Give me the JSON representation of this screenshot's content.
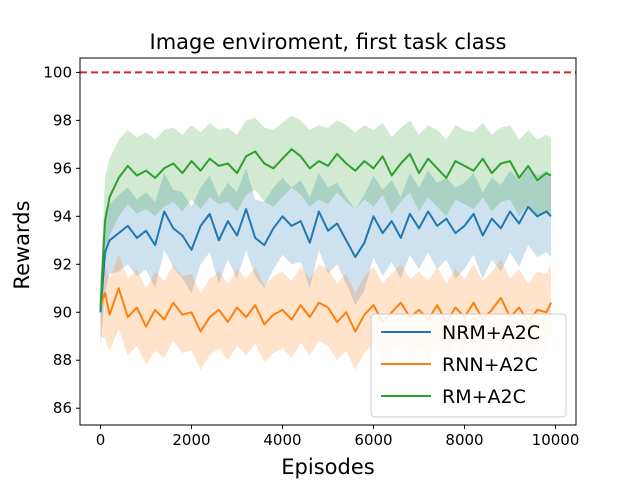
{
  "chart_data": {
    "type": "line",
    "title": "Image enviroment, first task class",
    "xlabel": "Episodes",
    "ylabel": "Rewards",
    "xlim": [
      -450,
      10450
    ],
    "ylim": [
      85.3,
      100.6
    ],
    "xticks": [
      0,
      2000,
      4000,
      6000,
      8000,
      10000
    ],
    "yticks": [
      86,
      88,
      90,
      92,
      94,
      96,
      98,
      100
    ],
    "reference_line": {
      "y": 100,
      "color": "#d62728",
      "style": "dashed"
    },
    "legend_position": "lower right",
    "series": [
      {
        "name": "NRM+A2C",
        "color": "#1f77b4",
        "x": [
          0,
          100,
          200,
          400,
          600,
          800,
          1000,
          1200,
          1400,
          1600,
          1800,
          2000,
          2200,
          2400,
          2600,
          2800,
          3000,
          3200,
          3400,
          3600,
          3800,
          4000,
          4200,
          4400,
          4600,
          4800,
          5000,
          5200,
          5400,
          5600,
          5800,
          6000,
          6200,
          6400,
          6600,
          6800,
          7000,
          7200,
          7400,
          7600,
          7800,
          8000,
          8200,
          8400,
          8600,
          8800,
          9000,
          9200,
          9400,
          9600,
          9800,
          9900
        ],
        "values": [
          90.0,
          92.5,
          93.0,
          93.3,
          93.6,
          93.1,
          93.4,
          92.8,
          94.2,
          93.5,
          93.2,
          92.6,
          93.6,
          94.1,
          93.0,
          93.8,
          93.2,
          94.3,
          93.1,
          92.8,
          93.5,
          94.0,
          93.6,
          93.8,
          92.9,
          94.2,
          93.4,
          93.7,
          93.0,
          92.3,
          92.9,
          94.0,
          93.3,
          93.8,
          93.1,
          94.1,
          93.5,
          94.2,
          93.6,
          93.9,
          93.3,
          93.6,
          94.1,
          93.2,
          93.9,
          93.5,
          94.2,
          93.7,
          94.4,
          94.0,
          94.2,
          94.0
        ],
        "band_low": [
          88.5,
          90.8,
          91.6,
          91.7,
          92.0,
          91.5,
          91.8,
          91.0,
          92.6,
          91.9,
          91.4,
          90.8,
          92.0,
          92.5,
          91.2,
          92.2,
          91.4,
          92.6,
          91.5,
          91.0,
          91.8,
          92.4,
          92.0,
          92.1,
          91.0,
          92.6,
          91.6,
          92.0,
          91.2,
          90.3,
          90.9,
          92.3,
          91.5,
          92.1,
          91.4,
          92.4,
          91.8,
          92.5,
          91.8,
          92.2,
          91.4,
          91.8,
          92.4,
          91.4,
          92.2,
          91.7,
          92.5,
          91.9,
          92.8,
          92.3,
          92.5,
          92.3
        ],
        "band_high": [
          91.5,
          94.2,
          94.5,
          94.9,
          95.2,
          94.7,
          95.0,
          94.6,
          95.8,
          95.1,
          95.0,
          94.4,
          95.2,
          95.7,
          94.8,
          95.4,
          95.0,
          96.0,
          94.7,
          94.6,
          95.2,
          95.6,
          95.2,
          95.5,
          94.8,
          95.8,
          95.2,
          95.4,
          94.8,
          94.3,
          94.9,
          95.7,
          95.1,
          95.5,
          94.8,
          95.8,
          95.2,
          95.9,
          95.4,
          95.6,
          95.2,
          95.4,
          95.8,
          95.0,
          95.6,
          95.3,
          95.9,
          95.5,
          96.0,
          95.7,
          95.9,
          95.7
        ]
      },
      {
        "name": "RNN+A2C",
        "color": "#ff7f0e",
        "x": [
          0,
          100,
          200,
          400,
          600,
          800,
          1000,
          1200,
          1400,
          1600,
          1800,
          2000,
          2200,
          2400,
          2600,
          2800,
          3000,
          3200,
          3400,
          3600,
          3800,
          4000,
          4200,
          4400,
          4600,
          4800,
          5000,
          5200,
          5400,
          5600,
          5800,
          6000,
          6200,
          6400,
          6600,
          6800,
          7000,
          7200,
          7400,
          7600,
          7800,
          8000,
          8200,
          8400,
          8600,
          8800,
          9000,
          9200,
          9400,
          9600,
          9800,
          9900
        ],
        "values": [
          90.3,
          90.8,
          89.9,
          91.0,
          89.8,
          90.2,
          89.4,
          90.1,
          89.7,
          90.4,
          89.9,
          90.0,
          89.2,
          89.8,
          90.1,
          89.6,
          90.2,
          89.8,
          90.3,
          89.5,
          89.9,
          90.1,
          89.7,
          90.3,
          89.8,
          90.4,
          90.2,
          89.6,
          90.0,
          89.2,
          89.9,
          90.3,
          89.6,
          90.0,
          90.4,
          89.8,
          90.1,
          89.7,
          90.3,
          89.6,
          90.2,
          89.8,
          90.4,
          89.7,
          90.1,
          90.6,
          89.8,
          90.2,
          89.6,
          90.1,
          90.0,
          90.4
        ],
        "band_low": [
          89.0,
          88.9,
          88.4,
          89.3,
          88.2,
          88.6,
          87.8,
          88.4,
          88.1,
          88.8,
          88.3,
          88.4,
          87.6,
          88.2,
          88.5,
          88.0,
          88.6,
          88.2,
          88.7,
          87.9,
          88.3,
          88.5,
          88.1,
          88.7,
          88.2,
          88.8,
          88.6,
          88.0,
          88.4,
          87.6,
          88.3,
          88.7,
          88.0,
          88.4,
          88.8,
          88.2,
          88.5,
          88.1,
          88.7,
          88.0,
          88.6,
          88.2,
          88.8,
          88.1,
          88.5,
          89.0,
          88.2,
          88.6,
          88.0,
          88.5,
          88.4,
          88.8
        ],
        "band_high": [
          91.6,
          92.0,
          91.4,
          92.4,
          91.4,
          91.8,
          91.0,
          91.7,
          91.3,
          92.0,
          91.5,
          91.6,
          90.8,
          91.4,
          91.7,
          91.2,
          91.8,
          91.4,
          91.9,
          91.1,
          91.5,
          91.7,
          91.3,
          91.9,
          91.4,
          92.0,
          91.8,
          91.2,
          91.6,
          90.8,
          91.5,
          91.9,
          91.2,
          91.6,
          92.0,
          91.4,
          91.7,
          91.3,
          91.9,
          91.2,
          91.8,
          91.4,
          92.0,
          91.3,
          91.7,
          92.2,
          91.4,
          91.8,
          91.2,
          91.7,
          91.6,
          92.0
        ]
      },
      {
        "name": "RM+A2C",
        "color": "#2ca02c",
        "x": [
          0,
          100,
          200,
          400,
          600,
          800,
          1000,
          1200,
          1400,
          1600,
          1800,
          2000,
          2200,
          2400,
          2600,
          2800,
          3000,
          3200,
          3400,
          3600,
          3800,
          4000,
          4200,
          4400,
          4600,
          4800,
          5000,
          5200,
          5400,
          5600,
          5800,
          6000,
          6200,
          6400,
          6600,
          6800,
          7000,
          7200,
          7400,
          7600,
          7800,
          8000,
          8200,
          8400,
          8600,
          8800,
          9000,
          9200,
          9400,
          9600,
          9800,
          9900
        ],
        "values": [
          90.2,
          93.8,
          94.8,
          95.6,
          96.1,
          95.7,
          95.9,
          95.6,
          96.0,
          96.2,
          95.8,
          96.3,
          95.9,
          96.4,
          96.1,
          96.2,
          95.8,
          96.5,
          96.7,
          96.2,
          96.0,
          96.4,
          96.8,
          96.5,
          96.0,
          96.3,
          96.1,
          96.6,
          96.2,
          95.9,
          96.3,
          96.0,
          96.5,
          95.7,
          96.2,
          96.6,
          95.8,
          96.4,
          96.0,
          95.6,
          96.3,
          96.1,
          95.9,
          96.4,
          95.8,
          96.2,
          96.3,
          95.6,
          96.1,
          95.5,
          95.8,
          95.7
        ],
        "band_low": [
          89.5,
          92.0,
          93.2,
          94.0,
          94.5,
          94.1,
          94.3,
          94.0,
          94.4,
          94.6,
          94.2,
          94.7,
          94.3,
          94.8,
          94.5,
          94.6,
          94.2,
          94.9,
          95.1,
          94.6,
          94.4,
          94.8,
          95.2,
          94.9,
          94.4,
          94.7,
          94.5,
          95.0,
          94.6,
          94.3,
          94.7,
          94.4,
          94.9,
          94.1,
          94.6,
          95.0,
          94.2,
          94.8,
          94.4,
          94.0,
          94.7,
          94.5,
          94.3,
          94.8,
          94.2,
          94.6,
          94.7,
          94.0,
          94.5,
          93.9,
          94.2,
          94.1
        ],
        "band_high": [
          91.0,
          95.6,
          96.4,
          97.2,
          97.6,
          97.3,
          97.5,
          97.2,
          97.6,
          97.7,
          97.4,
          97.8,
          97.5,
          97.9,
          97.6,
          97.7,
          97.4,
          98.0,
          98.1,
          97.7,
          97.6,
          97.9,
          98.2,
          98.0,
          97.6,
          97.8,
          97.7,
          98.0,
          97.8,
          97.5,
          97.8,
          97.6,
          97.9,
          97.3,
          97.7,
          98.0,
          97.4,
          97.8,
          97.6,
          97.2,
          97.8,
          97.6,
          97.5,
          97.9,
          97.4,
          97.7,
          97.8,
          97.2,
          97.6,
          97.2,
          97.4,
          97.3
        ]
      }
    ]
  }
}
